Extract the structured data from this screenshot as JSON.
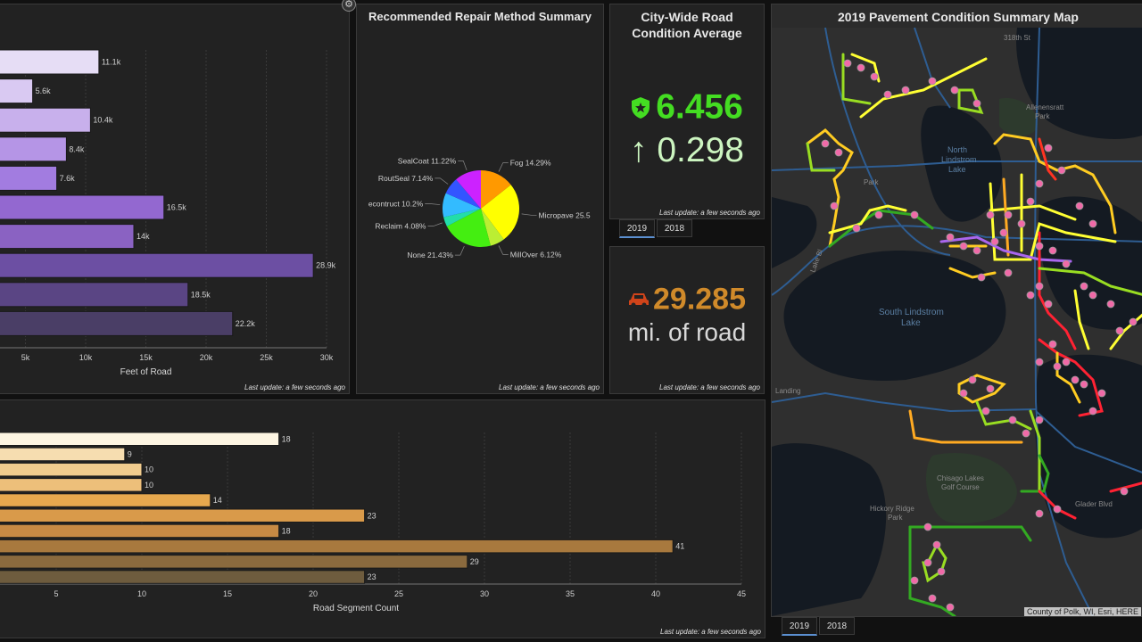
{
  "colors": {
    "green": "#44dd22",
    "orange": "#d08a2a",
    "text": "#d8d8d8"
  },
  "settings_icon": "gear-icon",
  "footage_chart": {
    "last_update": "Last update: a few seconds ago",
    "chart_data": {
      "type": "bar",
      "orientation": "horizontal",
      "values": [
        11.1,
        5.6,
        10.4,
        8.4,
        7.6,
        16.5,
        14,
        28.9,
        18.5,
        22.2
      ],
      "value_labels": [
        "11.1k",
        "5.6k",
        "10.4k",
        "8.4k",
        "7.6k",
        "16.5k",
        "14k",
        "28.9k",
        "18.5k",
        "22.2k"
      ],
      "colors": [
        "#e6ddf5",
        "#d9c9f2",
        "#c8b0ec",
        "#b595e6",
        "#a27ce0",
        "#9368d0",
        "#8a62c2",
        "#6c4fa3",
        "#5a4584",
        "#4a3e66"
      ],
      "xticks": [
        "5k",
        "10k",
        "15k",
        "20k",
        "25k",
        "30k"
      ],
      "xlabel": "Feet of Road",
      "xlim": [
        0,
        30
      ]
    }
  },
  "pie_panel": {
    "title": "Recommended Repair Method Summary",
    "last_update": "Last update: a few seconds ago",
    "chart_data": {
      "type": "pie",
      "slices": [
        {
          "label": "Fog 14.29%",
          "value": 14.29,
          "color": "#ff9900"
        },
        {
          "label": "Micropave 25.5",
          "value": 25.51,
          "color": "#ffff00"
        },
        {
          "label": "MillOver 6.12%",
          "value": 6.12,
          "color": "#bbee33"
        },
        {
          "label": "None 21.43%",
          "value": 21.43,
          "color": "#44ee11"
        },
        {
          "label": "Reclaim 4.08%",
          "value": 4.08,
          "color": "#22ddaa"
        },
        {
          "label": "econtruct 10.2%",
          "value": 10.2,
          "color": "#33bbff"
        },
        {
          "label": "RoutSeal 7.14%",
          "value": 7.14,
          "color": "#3355ff"
        },
        {
          "label": "SealCoat 11.22%",
          "value": 11.22,
          "color": "#cc22ff"
        }
      ]
    }
  },
  "avg_panel": {
    "title_line1": "City-Wide Road",
    "title_line2": "Condition Average",
    "value": "6.456",
    "arrow": "↑",
    "change": "0.298",
    "last_update": "Last update: a few seconds ago",
    "tabs": [
      "2019",
      "2018"
    ]
  },
  "miles_panel": {
    "value": "29.285",
    "unit": "mi. of road",
    "last_update": "Last update: a few seconds ago"
  },
  "segment_chart": {
    "last_update": "Last update: a few seconds ago",
    "chart_data": {
      "type": "bar",
      "orientation": "horizontal",
      "values": [
        18,
        9,
        10,
        10,
        14,
        23,
        18,
        41,
        29,
        23
      ],
      "colors": [
        "#fdf5e2",
        "#f6ddb0",
        "#f1cc8e",
        "#edbf7a",
        "#e6a84e",
        "#d99a4a",
        "#c78a44",
        "#a8793e",
        "#8a6a3e",
        "#6e5c3e"
      ],
      "xticks": [
        "5",
        "10",
        "15",
        "20",
        "25",
        "30",
        "35",
        "40",
        "45"
      ],
      "xlabel": "Road Segment Count",
      "xlim": [
        0,
        45
      ]
    }
  },
  "map_panel": {
    "title": "2019 Pavement Condition Summary Map",
    "attribution": "County of Polk, WI, Esri, HERE",
    "labels": {
      "st318": "318th St",
      "allen": "Allenensratt",
      "allen2": "Park",
      "north1": "North",
      "north2": "Lindstrom",
      "north3": "Lake",
      "park": "Park",
      "south1": "South Lindstrom",
      "south2": "Lake",
      "landing": "Landing",
      "chisago1": "Chisago Lakes",
      "chisago2": "Golf Course",
      "hickory1": "Hickory Ridge",
      "hickory2": "Park",
      "glader": "Glader Blvd",
      "lakebl": "Lake Bl"
    },
    "tabs": [
      "2019",
      "2018"
    ]
  }
}
